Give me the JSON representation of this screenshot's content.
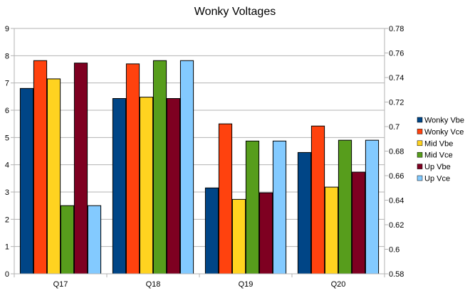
{
  "chart_data": {
    "type": "bar",
    "title": "Wonky Voltages",
    "categories": [
      "Q17",
      "Q18",
      "Q19",
      "Q20"
    ],
    "series": [
      {
        "name": "Wonky Vbe",
        "color": "#004586",
        "values": [
          6.8,
          6.43,
          3.15,
          4.45
        ]
      },
      {
        "name": "Wonky Vce",
        "color": "#ff420e",
        "values": [
          7.82,
          7.7,
          5.5,
          5.42
        ]
      },
      {
        "name": "Mid Vbe",
        "color": "#ffd320",
        "values": [
          7.15,
          6.48,
          2.73,
          3.18
        ]
      },
      {
        "name": "Mid Vce",
        "color": "#579d1c",
        "values": [
          2.5,
          7.82,
          4.87,
          4.9
        ]
      },
      {
        "name": "Up Vbe",
        "color": "#7e0021",
        "values": [
          7.73,
          6.43,
          2.97,
          3.73
        ]
      },
      {
        "name": "Up Vce",
        "color": "#83caff",
        "values": [
          2.5,
          7.82,
          4.87,
          4.9
        ]
      }
    ],
    "ylim": [
      0,
      9
    ],
    "yticks": [
      "0",
      "1",
      "2",
      "3",
      "4",
      "5",
      "6",
      "7",
      "8",
      "9"
    ],
    "y2lim": [
      0.58,
      0.78
    ],
    "y2ticks": [
      "0.58",
      "0.6",
      "0.62",
      "0.64",
      "0.66",
      "0.68",
      "0.7",
      "0.72",
      "0.74",
      "0.76",
      "0.78"
    ],
    "grid": true,
    "legend": "right"
  }
}
